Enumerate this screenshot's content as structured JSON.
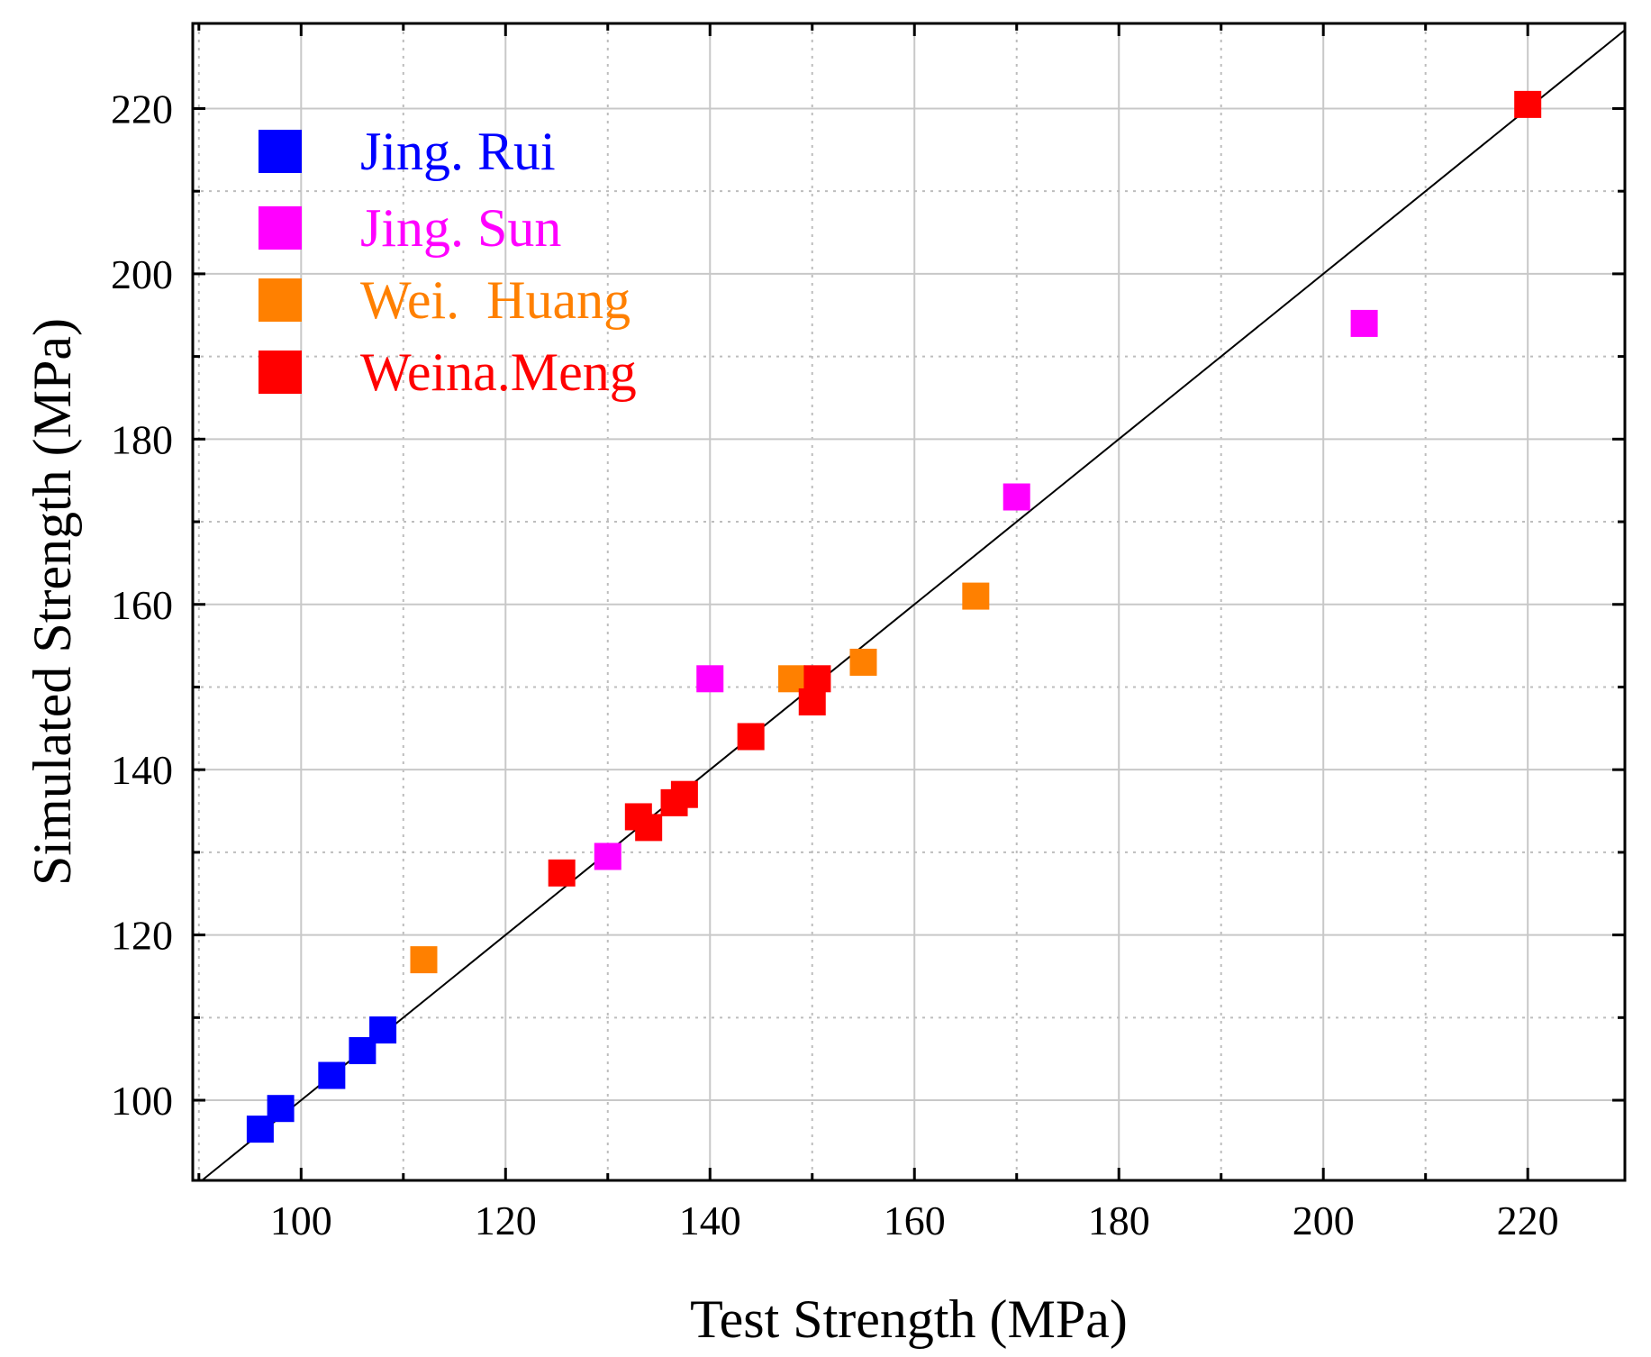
{
  "chart_data": {
    "type": "scatter",
    "xlabel": "Test Strength (MPa)",
    "ylabel": "Simulated Strength (MPa)",
    "xlim": [
      89.4,
      229.5
    ],
    "ylim": [
      90.3,
      230.3
    ],
    "x_ticks": [
      100,
      120,
      140,
      160,
      180,
      200,
      220
    ],
    "y_ticks": [
      100,
      120,
      140,
      160,
      180,
      200,
      220
    ],
    "x_minor_ticks": [
      90,
      110,
      130,
      150,
      170,
      190,
      210
    ],
    "y_minor_ticks": [
      110,
      130,
      150,
      170,
      190,
      210
    ],
    "grid": true,
    "reference_line": "y = x",
    "legend_position": "top-left",
    "series": [
      {
        "name": "Jing. Rui",
        "color": "#0000ff",
        "points": [
          [
            96,
            96.5
          ],
          [
            98,
            99
          ],
          [
            103,
            103
          ],
          [
            106,
            106
          ],
          [
            108,
            108.5
          ]
        ]
      },
      {
        "name": "Jing. Sun",
        "color": "#ff00ff",
        "points": [
          [
            130,
            129.5
          ],
          [
            140,
            151
          ],
          [
            170,
            173
          ],
          [
            204,
            194
          ]
        ]
      },
      {
        "name": "Wei.  Huang",
        "color": "#ff8000",
        "points": [
          [
            112,
            117
          ],
          [
            148,
            151
          ],
          [
            155,
            153
          ],
          [
            166,
            161
          ]
        ]
      },
      {
        "name": "Weina.Meng",
        "color": "#ff0000",
        "points": [
          [
            125.5,
            127.5
          ],
          [
            133,
            134.3
          ],
          [
            134,
            133
          ],
          [
            136.5,
            136
          ],
          [
            137.5,
            137
          ],
          [
            144,
            144
          ],
          [
            150,
            148.2
          ],
          [
            150.5,
            151
          ],
          [
            220,
            220.5
          ]
        ]
      }
    ]
  }
}
